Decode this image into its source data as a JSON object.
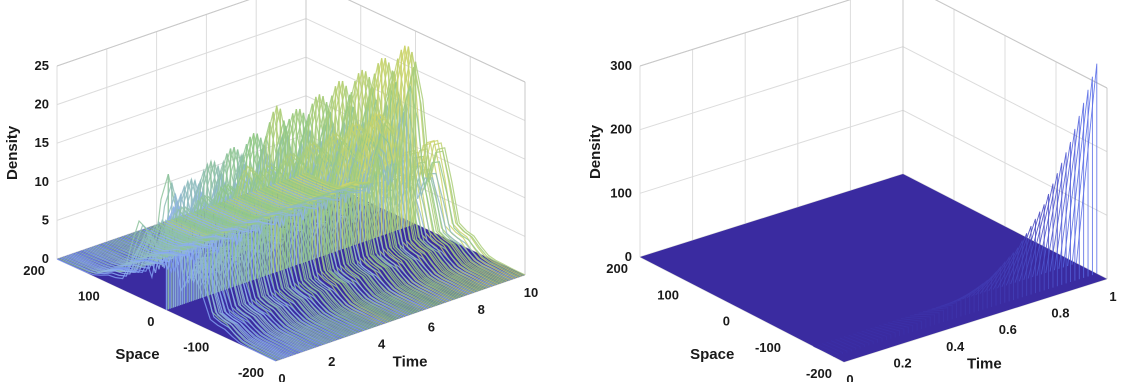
{
  "chart_data": [
    {
      "type": "surface",
      "title": "",
      "xlabel": "Time",
      "ylabel": "Space",
      "zlabel": "Density",
      "xlim": [
        0,
        10
      ],
      "ylim": [
        -200,
        200
      ],
      "zlim": [
        0,
        25
      ],
      "xticks": [
        "0",
        "2",
        "4",
        "6",
        "8",
        "10"
      ],
      "yticks": [
        "-200",
        "-100",
        "0",
        "100",
        "200"
      ],
      "zticks": [
        "0",
        "5",
        "10",
        "15",
        "20",
        "25"
      ],
      "grid": true,
      "colormap": [
        "#3b2fa6",
        "#5a6ee8",
        "#8fb0f5",
        "#8fc887",
        "#e0d860"
      ],
      "peaks": {
        "time": [
          0.0,
          0.5,
          1.0,
          1.5,
          2.0,
          2.5,
          3.0,
          3.5,
          4.0,
          4.5,
          5.0,
          5.5,
          6.0,
          6.5,
          7.0,
          7.5,
          8.0,
          8.5,
          9.0,
          9.5,
          10.0
        ],
        "max_density": [
          18,
          15,
          16,
          17,
          17.5,
          18,
          18.5,
          19,
          19.5,
          22,
          20,
          20.5,
          21,
          21.5,
          22,
          22,
          22.5,
          23,
          23,
          23.5,
          24
        ],
        "front_space": [
          0,
          20,
          40,
          55,
          70,
          85,
          95,
          105,
          115,
          125,
          135,
          145,
          150,
          155,
          160,
          165,
          170,
          175,
          180,
          185,
          190
        ]
      }
    },
    {
      "type": "surface",
      "title": "",
      "xlabel": "Time",
      "ylabel": "Space",
      "zlabel": "Density",
      "xlim": [
        0,
        1
      ],
      "ylim": [
        -200,
        200
      ],
      "zlim": [
        0,
        300
      ],
      "xticks": [
        "0",
        "0.2",
        "0.4",
        "0.6",
        "0.8",
        "1"
      ],
      "yticks": [
        "-200",
        "-100",
        "0",
        "100",
        "200"
      ],
      "zticks": [
        "0",
        "100",
        "200",
        "300"
      ],
      "grid": true,
      "colormap": [
        "#3b2fa6",
        "#5a6ee8"
      ],
      "growth": {
        "time": [
          0.0,
          0.1,
          0.2,
          0.3,
          0.4,
          0.5,
          0.6,
          0.7,
          0.8,
          0.9,
          1.0
        ],
        "max_density": [
          2,
          3,
          6,
          10,
          17,
          28,
          47,
          80,
          135,
          220,
          330
        ]
      }
    }
  ]
}
